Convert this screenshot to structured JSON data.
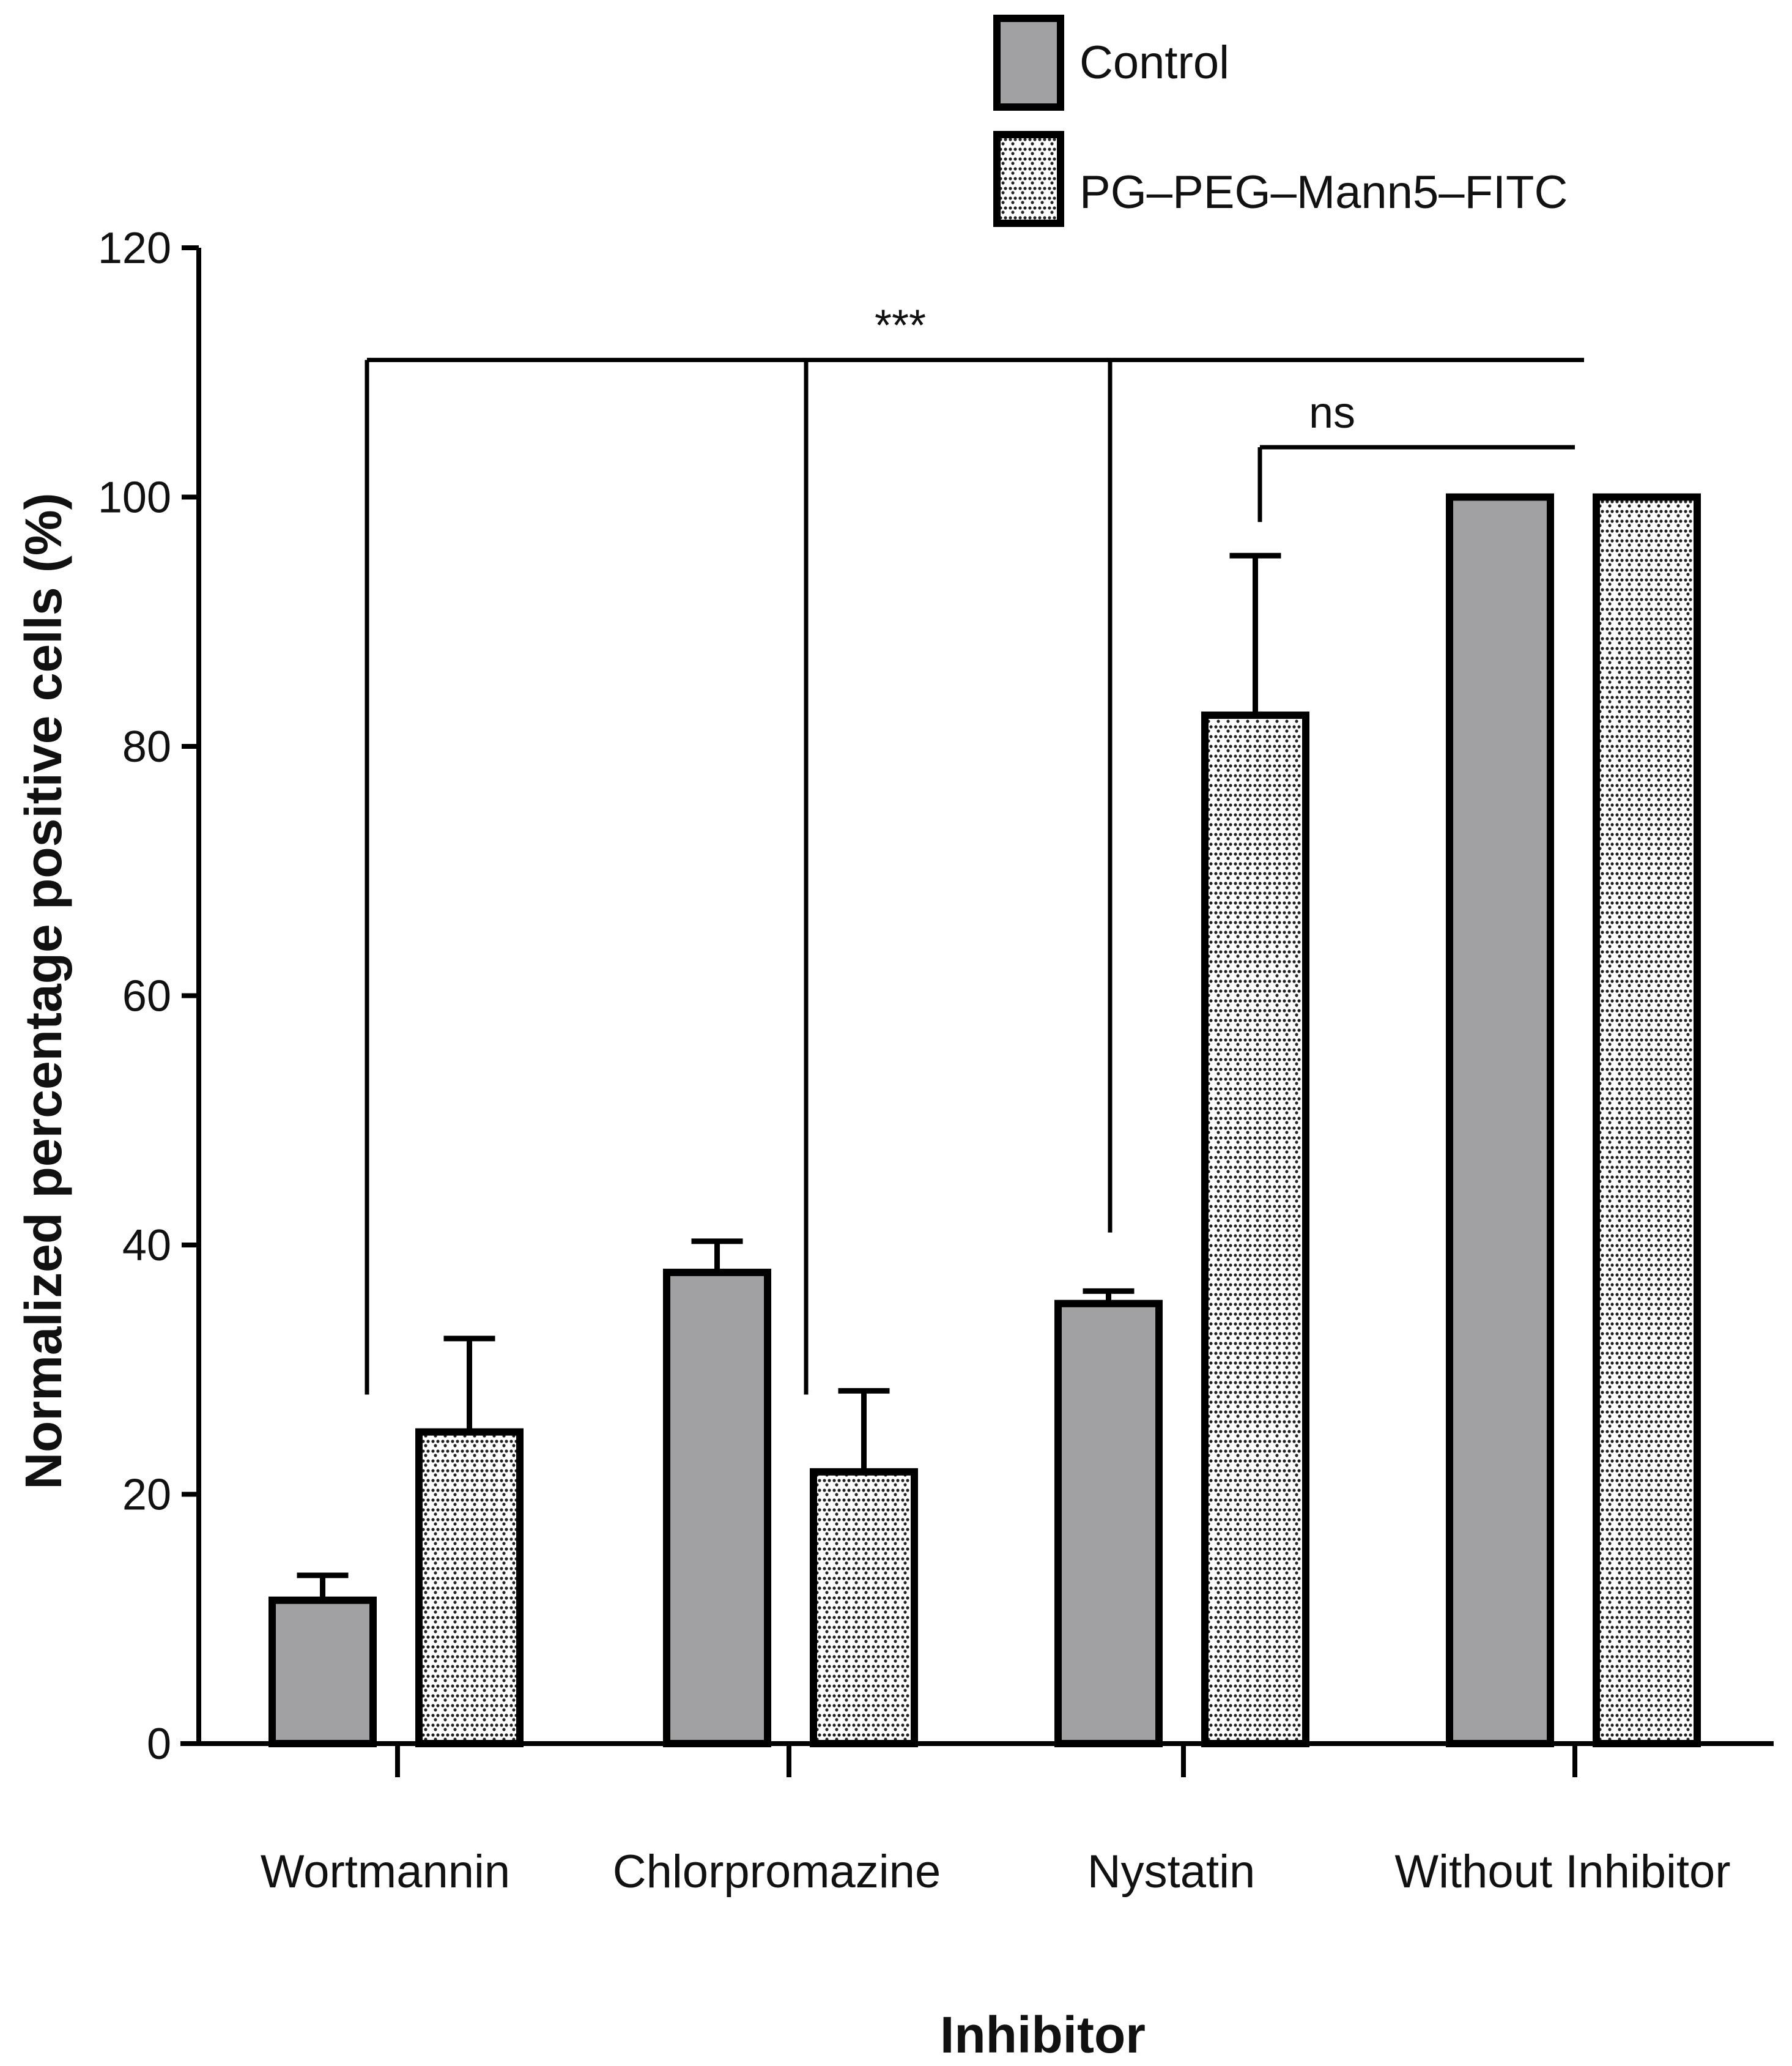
{
  "chart_data": {
    "type": "bar",
    "xlabel": "Inhibitor",
    "ylabel": "Normalized percentage positive cells (%)",
    "ylim": [
      0,
      120
    ],
    "yticks": [
      0,
      20,
      40,
      60,
      80,
      100,
      120
    ],
    "categories": [
      "Wortmannin",
      "Chlorpromazine",
      "Nystatin",
      "Without Inhibitor"
    ],
    "series": [
      {
        "name": "Control",
        "pattern": "solid",
        "color": "#a1a1a4",
        "values": [
          11.5,
          37.8,
          35.3,
          100
        ],
        "errors": [
          2.0,
          2.5,
          1.0,
          0
        ]
      },
      {
        "name": "PG–PEG–Mann5–FITC",
        "pattern": "dotted",
        "color": "#ffffff",
        "values": [
          25.0,
          21.8,
          82.5,
          100
        ],
        "errors": [
          7.5,
          6.5,
          12.8,
          0
        ]
      }
    ],
    "legend_position": "top-right",
    "significance": [
      {
        "label": "***",
        "level": 111,
        "targets": [
          "Wortmannin",
          "Chlorpromazine",
          "Nystatin"
        ],
        "ref": "Without Inhibitor"
      },
      {
        "label": "ns",
        "level": 104,
        "from": "Nystatin",
        "to": "Without Inhibitor"
      }
    ]
  }
}
